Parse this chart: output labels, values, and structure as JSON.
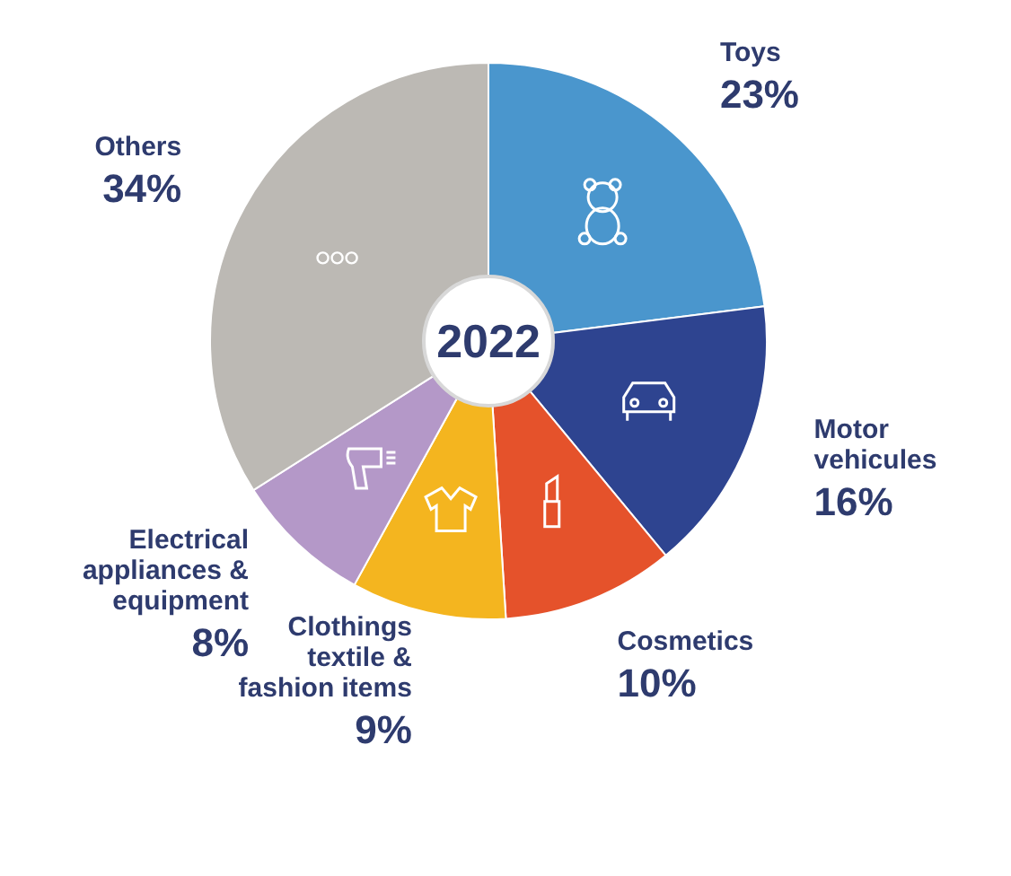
{
  "chart_data": {
    "type": "donut",
    "title": "2022",
    "categories": [
      "Toys",
      "Motor vehicules",
      "Cosmetics",
      "Clothings textile & fashion items",
      "Electrical appliances & equipment",
      "Others"
    ],
    "values": [
      23,
      16,
      10,
      9,
      8,
      34
    ],
    "value_labels": [
      "23%",
      "16%",
      "10%",
      "9%",
      "8%",
      "34%"
    ],
    "colors": [
      "#4a96cd",
      "#2e4490",
      "#e5522b",
      "#f4b51f",
      "#b498c8",
      "#bcb9b4"
    ]
  }
}
